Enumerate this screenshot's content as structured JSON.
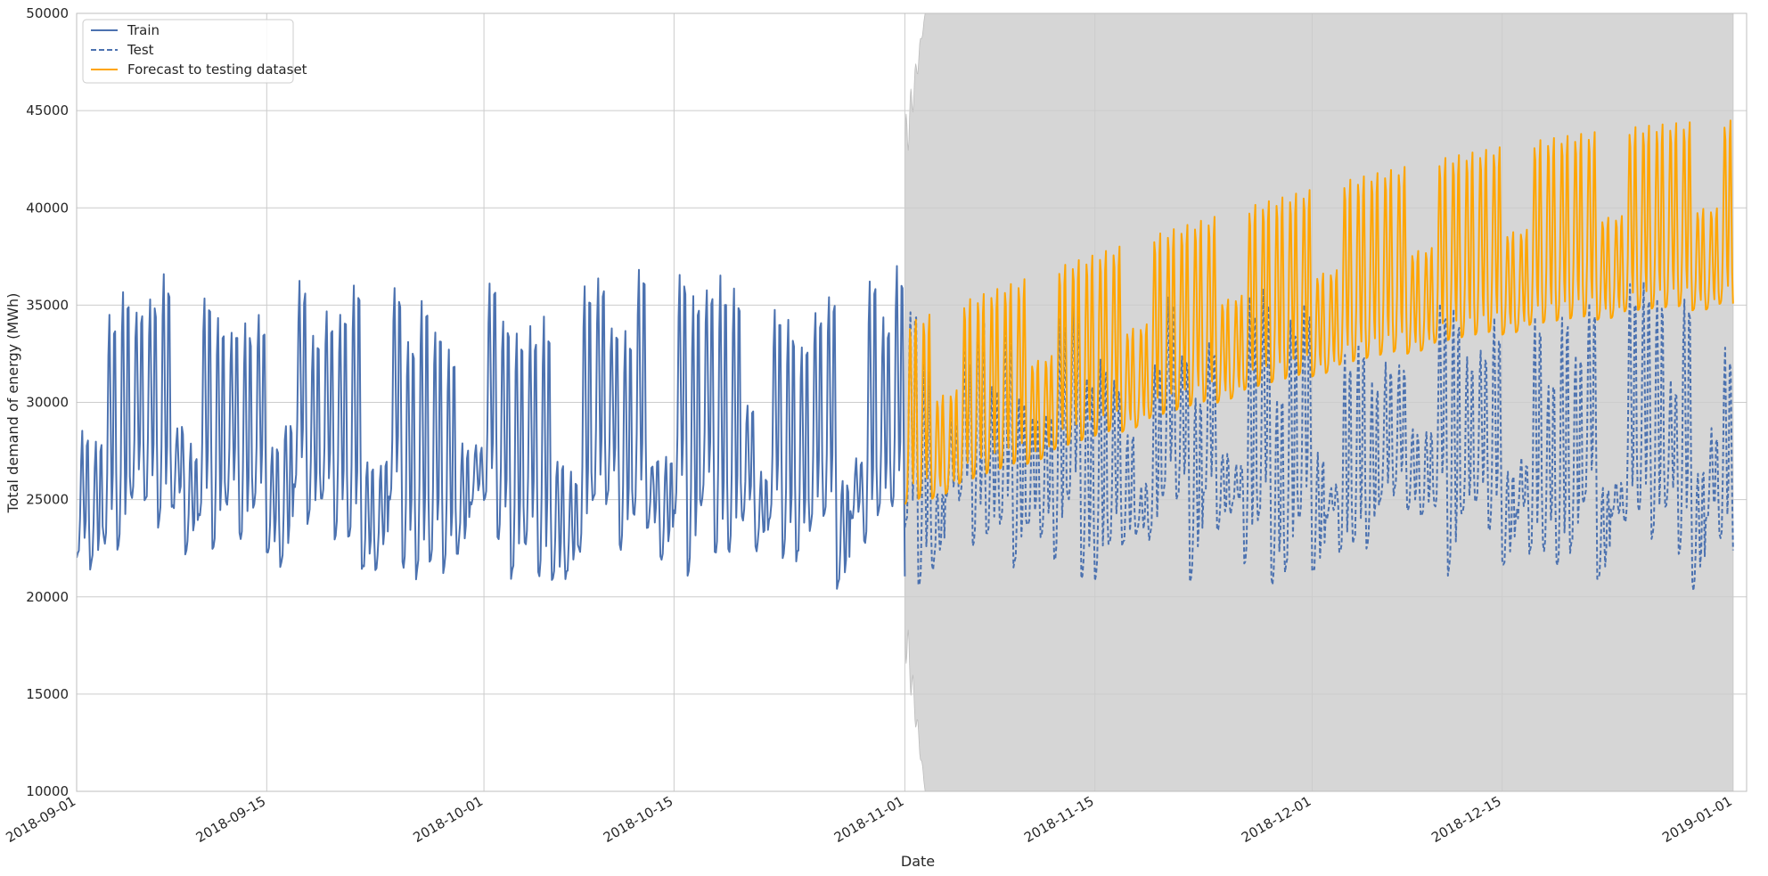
{
  "chart_data": {
    "type": "line",
    "title": "",
    "xlabel": "Date",
    "ylabel": "Total demand of energy (MWh)",
    "xlim": [
      "2018-09-01",
      "2019-01-02"
    ],
    "ylim": [
      10000,
      50000
    ],
    "grid": true,
    "legend_position": "top-left",
    "x_ticks": [
      "2018-09-01",
      "2018-09-15",
      "2018-10-01",
      "2018-10-15",
      "2018-11-01",
      "2018-11-15",
      "2018-12-01",
      "2018-12-15",
      "2019-01-01"
    ],
    "y_ticks": [
      10000,
      15000,
      20000,
      25000,
      30000,
      35000,
      40000,
      45000,
      50000
    ],
    "colors": {
      "train": "#4c72b0",
      "test": "#4c72b0",
      "forecast": "#ffa500",
      "confidence_band": "#d6d6d6",
      "grid": "#cccccc",
      "axes_edge": "#bfbfbf"
    },
    "series": [
      {
        "name": "Train",
        "style": "solid",
        "start": "2018-09-01",
        "end": "2018-11-01",
        "frequency": "hourly",
        "daily_peak_weekday": [
          35000,
          39500
        ],
        "daily_trough": [
          20000,
          25000
        ],
        "weekend_peak": [
          27000,
          31000
        ],
        "typical_range": [
          19800,
          39800
        ]
      },
      {
        "name": "Test",
        "style": "dashed",
        "start": "2018-11-01",
        "end": "2019-01-01",
        "frequency": "hourly",
        "daily_peak_weekday": [
          32000,
          38500
        ],
        "daily_trough": [
          20000,
          25000
        ],
        "weekend_peak": [
          26000,
          31000
        ],
        "typical_range": [
          18500,
          38800
        ]
      },
      {
        "name": "Forecast to testing dataset",
        "style": "solid",
        "start": "2018-11-01",
        "end": "2019-01-01",
        "frequency": "hourly",
        "peak_start": 35500,
        "peak_end": 46000,
        "trough_start": 24200,
        "trough_end": 34500,
        "typical_range": [
          23500,
          46100
        ]
      }
    ],
    "confidence_band": {
      "start": "2018-11-01",
      "end": "2019-01-01",
      "lower_start": 18500,
      "upper_start": 43000,
      "lower_after_expansion": 10000,
      "upper_after_expansion": 50000
    },
    "legend": [
      {
        "label": "Train",
        "style": "solid",
        "color": "#4c72b0"
      },
      {
        "label": "Test",
        "style": "dashed",
        "color": "#4c72b0"
      },
      {
        "label": "Forecast to testing dataset",
        "style": "solid",
        "color": "#ffa500"
      }
    ]
  }
}
